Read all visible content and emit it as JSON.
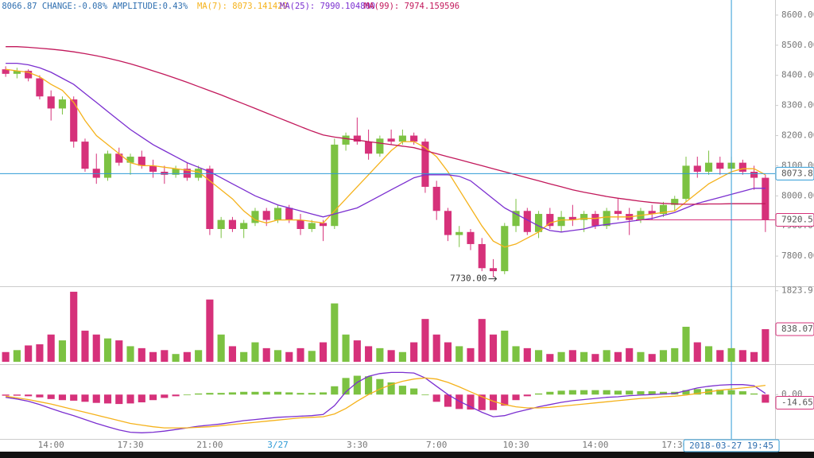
{
  "chart_data": [
    {
      "type": "candlestick",
      "header": ":8066.87 CHANGE:-0.08% AMPLITUDE:0.43%",
      "up_color": "#7cc242",
      "down_color": "#d6317a",
      "categories": [
        null,
        null,
        null,
        null,
        "14:00",
        null,
        null,
        null,
        null,
        null,
        null,
        "17:30",
        null,
        null,
        null,
        null,
        null,
        null,
        "21:00",
        null,
        null,
        null,
        null,
        null,
        "3/27",
        null,
        null,
        null,
        null,
        null,
        null,
        "3:30",
        null,
        null,
        null,
        null,
        null,
        null,
        "7:00",
        null,
        null,
        null,
        null,
        null,
        null,
        "10:30",
        null,
        null,
        null,
        null,
        null,
        null,
        "14:00",
        null,
        null,
        null,
        null,
        null,
        null,
        "17:30",
        null,
        null,
        null,
        null,
        null,
        null,
        null,
        null
      ],
      "values": [
        [
          8420,
          8430,
          8395,
          8405
        ],
        [
          8405,
          8425,
          8390,
          8415
        ],
        [
          8415,
          8420,
          8380,
          8390
        ],
        [
          8390,
          8400,
          8320,
          8330
        ],
        [
          8330,
          8350,
          8250,
          8290
        ],
        [
          8290,
          8330,
          8270,
          8320
        ],
        [
          8320,
          8330,
          8160,
          8180
        ],
        [
          8180,
          8190,
          8080,
          8090
        ],
        [
          8090,
          8140,
          8040,
          8060
        ],
        [
          8060,
          8150,
          8050,
          8140
        ],
        [
          8140,
          8160,
          8100,
          8110
        ],
        [
          8110,
          8140,
          8070,
          8130
        ],
        [
          8130,
          8150,
          8090,
          8100
        ],
        [
          8100,
          8120,
          8060,
          8080
        ],
        [
          8080,
          8100,
          8040,
          8070
        ],
        [
          8070,
          8100,
          8060,
          8090
        ],
        [
          8090,
          8110,
          8050,
          8060
        ],
        [
          8060,
          8100,
          8050,
          8090
        ],
        [
          8090,
          8100,
          7870,
          7890
        ],
        [
          7890,
          7930,
          7860,
          7920
        ],
        [
          7920,
          7930,
          7880,
          7890
        ],
        [
          7890,
          7920,
          7860,
          7910
        ],
        [
          7910,
          7960,
          7900,
          7950
        ],
        [
          7950,
          7960,
          7900,
          7920
        ],
        [
          7920,
          7970,
          7910,
          7960
        ],
        [
          7960,
          7970,
          7910,
          7920
        ],
        [
          7920,
          7940,
          7870,
          7890
        ],
        [
          7890,
          7920,
          7880,
          7910
        ],
        [
          7910,
          7920,
          7850,
          7900
        ],
        [
          7900,
          8190,
          7890,
          8170
        ],
        [
          8170,
          8210,
          8150,
          8200
        ],
        [
          8200,
          8260,
          8170,
          8180
        ],
        [
          8180,
          8220,
          8120,
          8140
        ],
        [
          8140,
          8200,
          8130,
          8190
        ],
        [
          8190,
          8220,
          8170,
          8180
        ],
        [
          8180,
          8220,
          8170,
          8200
        ],
        [
          8200,
          8210,
          8170,
          8180
        ],
        [
          8180,
          8190,
          8010,
          8030
        ],
        [
          8030,
          8050,
          7920,
          7950
        ],
        [
          7950,
          7960,
          7850,
          7870
        ],
        [
          7870,
          7900,
          7830,
          7880
        ],
        [
          7880,
          7890,
          7820,
          7840
        ],
        [
          7840,
          7860,
          7750,
          7760
        ],
        [
          7760,
          7790,
          7730,
          7750
        ],
        [
          7750,
          7910,
          7740,
          7900
        ],
        [
          7900,
          7990,
          7880,
          7950
        ],
        [
          7950,
          7960,
          7870,
          7880
        ],
        [
          7880,
          7950,
          7860,
          7940
        ],
        [
          7940,
          7960,
          7890,
          7900
        ],
        [
          7900,
          7950,
          7880,
          7930
        ],
        [
          7930,
          7970,
          7900,
          7920
        ],
        [
          7920,
          7950,
          7880,
          7940
        ],
        [
          7940,
          7950,
          7890,
          7900
        ],
        [
          7900,
          7960,
          7890,
          7950
        ],
        [
          7950,
          7990,
          7920,
          7940
        ],
        [
          7940,
          7960,
          7870,
          7920
        ],
        [
          7920,
          7960,
          7910,
          7950
        ],
        [
          7950,
          7970,
          7920,
          7940
        ],
        [
          7940,
          7980,
          7930,
          7970
        ],
        [
          7970,
          8000,
          7950,
          7990
        ],
        [
          7990,
          8130,
          7980,
          8100
        ],
        [
          8100,
          8130,
          8060,
          8080
        ],
        [
          8080,
          8150,
          8070,
          8110
        ],
        [
          8110,
          8130,
          8070,
          8090
        ],
        [
          8090,
          8130,
          8080,
          8110
        ],
        [
          8110,
          8120,
          8070,
          8080
        ],
        [
          8080,
          8100,
          8020,
          8060
        ],
        [
          8060,
          8070,
          7880,
          7920.5
        ]
      ],
      "series": [
        {
          "name": "MA(7): 8073.141429",
          "color": "#f5b21b",
          "values": [
            8420,
            8415,
            8410,
            8395,
            8370,
            8350,
            8310,
            8250,
            8200,
            8170,
            8140,
            8110,
            8100,
            8100,
            8095,
            8090,
            8085,
            8080,
            8050,
            8020,
            7990,
            7950,
            7920,
            7910,
            7920,
            7920,
            7920,
            7915,
            7910,
            7950,
            7990,
            8030,
            8070,
            8110,
            8150,
            8180,
            8180,
            8160,
            8130,
            8080,
            8020,
            7960,
            7900,
            7850,
            7830,
            7840,
            7860,
            7880,
            7910,
            7920,
            7920,
            7925,
            7925,
            7930,
            7930,
            7930,
            7935,
            7940,
            7945,
            7950,
            7980,
            8010,
            8040,
            8060,
            8080,
            8090,
            8090,
            8070
          ]
        },
        {
          "name": "MA(25): 7990.104800",
          "color": "#7b2fd0",
          "values": [
            8440,
            8440,
            8435,
            8425,
            8410,
            8390,
            8370,
            8340,
            8310,
            8280,
            8250,
            8220,
            8195,
            8170,
            8150,
            8130,
            8110,
            8095,
            8080,
            8060,
            8040,
            8020,
            8000,
            7985,
            7970,
            7960,
            7950,
            7940,
            7930,
            7940,
            7950,
            7960,
            7980,
            8000,
            8020,
            8040,
            8060,
            8070,
            8070,
            8070,
            8065,
            8050,
            8020,
            7990,
            7960,
            7940,
            7920,
            7900,
            7885,
            7880,
            7885,
            7890,
            7900,
            7905,
            7910,
            7915,
            7920,
            7925,
            7935,
            7945,
            7960,
            7975,
            7985,
            7995,
            8005,
            8015,
            8025,
            8025
          ]
        },
        {
          "name": "MA(99): 7974.159596",
          "color": "#c2185b",
          "values": [
            8495,
            8495,
            8493,
            8490,
            8487,
            8483,
            8478,
            8472,
            8465,
            8457,
            8448,
            8438,
            8427,
            8415,
            8403,
            8390,
            8377,
            8363,
            8349,
            8335,
            8320,
            8305,
            8290,
            8275,
            8260,
            8245,
            8230,
            8215,
            8202,
            8195,
            8190,
            8185,
            8180,
            8175,
            8170,
            8165,
            8160,
            8150,
            8140,
            8130,
            8120,
            8110,
            8100,
            8090,
            8080,
            8070,
            8060,
            8050,
            8040,
            8030,
            8020,
            8012,
            8005,
            7998,
            7992,
            7987,
            7982,
            7978,
            7975,
            7973,
            7972,
            7972,
            7973,
            7973,
            7974,
            7974,
            7974,
            7974
          ]
        }
      ],
      "ylim": [
        7700,
        8650
      ],
      "yticks": [
        {
          "value": 7800,
          "label": "7800.00"
        },
        {
          "value": 7900,
          "label": "7900.00"
        },
        {
          "value": 8000,
          "label": "8000.00"
        },
        {
          "value": 8100,
          "label": "8100.00"
        },
        {
          "value": 8200,
          "label": "8200.00"
        },
        {
          "value": 8300,
          "label": "8300.00"
        },
        {
          "value": 8400,
          "label": "8400.00"
        },
        {
          "value": 8500,
          "label": "8500.00"
        },
        {
          "value": 8600,
          "label": "8600.00"
        }
      ],
      "crosshair_value": 8073.8,
      "crosshair_label": "2018-03-27 19:45",
      "crosshair_color": "#2f9bd6",
      "low_label": "7730.00"
    },
    {
      "type": "bar",
      "values": [
        250,
        300,
        420,
        450,
        700,
        550,
        1800,
        800,
        700,
        600,
        550,
        400,
        350,
        250,
        300,
        200,
        250,
        300,
        1600,
        700,
        400,
        250,
        500,
        350,
        300,
        250,
        350,
        280,
        500,
        1500,
        700,
        550,
        400,
        350,
        300,
        250,
        500,
        1100,
        700,
        500,
        400,
        350,
        1100,
        700,
        800,
        400,
        350,
        300,
        200,
        250,
        300,
        250,
        200,
        300,
        250,
        350,
        250,
        200,
        300,
        350,
        900,
        500,
        400,
        300,
        350,
        300,
        250,
        838.07
      ],
      "ylim": [
        0,
        1900
      ],
      "yticks": [
        1823.9
      ]
    },
    {
      "type": "macd",
      "histogram": [
        -2,
        -2,
        -3,
        -5,
        -8,
        -10,
        -11,
        -13,
        -15,
        -16,
        -17,
        -16,
        -14,
        -10,
        -6,
        -3,
        0,
        2,
        3,
        3,
        4,
        5,
        5,
        5,
        5,
        4,
        3,
        3,
        4,
        15,
        30,
        34,
        33,
        28,
        22,
        16,
        11,
        0,
        -13,
        -22,
        -26,
        -27,
        -28,
        -28,
        -20,
        -10,
        -3,
        2,
        5,
        7,
        8,
        8,
        8,
        8,
        7,
        7,
        6,
        6,
        5,
        5,
        8,
        10,
        10,
        9,
        8,
        6,
        2,
        -14.65
      ],
      "series": [
        {
          "color": "#7b2fd0",
          "values": [
            -5,
            -8,
            -12,
            -18,
            -25,
            -32,
            -38,
            -45,
            -52,
            -58,
            -64,
            -68,
            -69,
            -68,
            -66,
            -63,
            -60,
            -57,
            -55,
            -53,
            -50,
            -47,
            -45,
            -43,
            -41,
            -40,
            -39,
            -38,
            -36,
            -20,
            5,
            22,
            33,
            38,
            40,
            40,
            39,
            30,
            15,
            0,
            -12,
            -22,
            -32,
            -40,
            -38,
            -32,
            -27,
            -22,
            -18,
            -14,
            -11,
            -9,
            -7,
            -5,
            -4,
            -2,
            -1,
            0,
            1,
            2,
            7,
            12,
            15,
            17,
            18,
            18,
            16,
            2
          ]
        },
        {
          "color": "#f5b21b",
          "values": [
            -3,
            -6,
            -9,
            -13,
            -17,
            -22,
            -27,
            -32,
            -37,
            -42,
            -47,
            -52,
            -55,
            -58,
            -60,
            -60,
            -60,
            -59,
            -58,
            -56,
            -54,
            -52,
            -50,
            -48,
            -46,
            -44,
            -42,
            -41,
            -40,
            -35,
            -25,
            -12,
            0,
            10,
            18,
            24,
            28,
            30,
            28,
            22,
            14,
            5,
            -4,
            -12,
            -18,
            -22,
            -24,
            -24,
            -23,
            -21,
            -19,
            -17,
            -15,
            -13,
            -11,
            -9,
            -7,
            -6,
            -4,
            -3,
            -1,
            2,
            5,
            8,
            10,
            12,
            14,
            16.65
          ]
        }
      ],
      "ylim": [
        -80,
        52
      ],
      "yticks": [
        {
          "value": 0,
          "label": "0.00"
        }
      ]
    }
  ]
}
